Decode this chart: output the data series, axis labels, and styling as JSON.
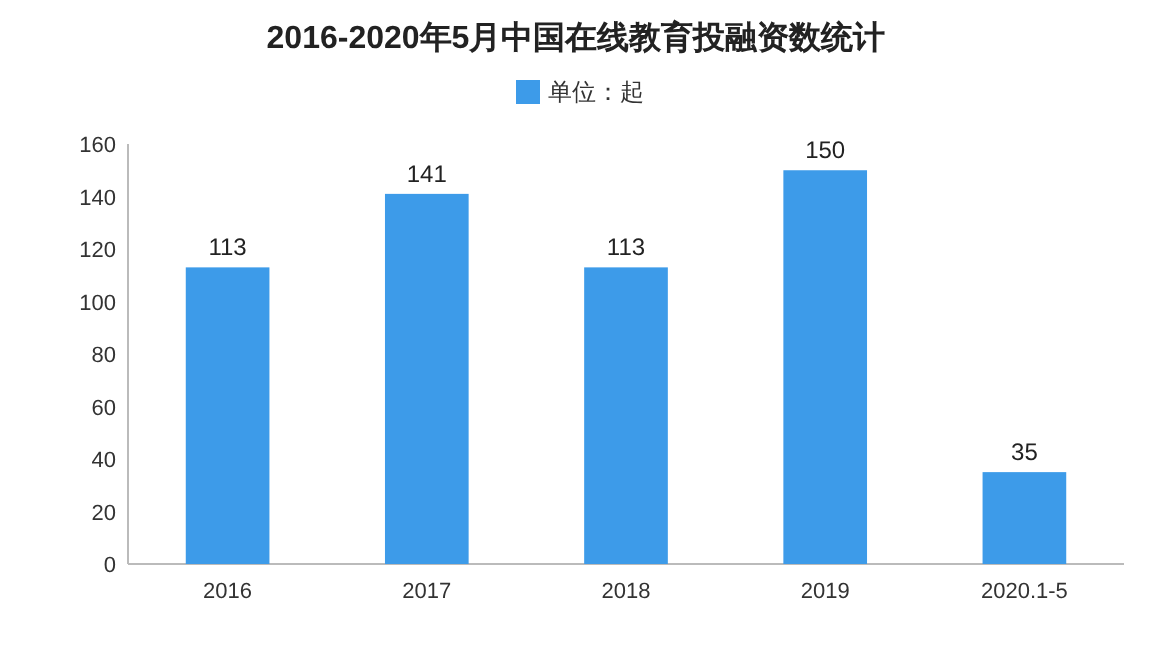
{
  "chart_data": {
    "type": "bar",
    "title": "2016-2020年5月中国在线教育投融资数统计",
    "categories": [
      "2016",
      "2017",
      "2018",
      "2019",
      "2020.1-5"
    ],
    "series": [
      {
        "name": "单位：起",
        "color": "#3d9be9",
        "values": [
          113,
          141,
          113,
          150,
          35
        ]
      }
    ],
    "ylim": [
      0,
      160
    ],
    "yticks": [
      0,
      20,
      40,
      60,
      80,
      100,
      120,
      140,
      160
    ],
    "data_labels": true,
    "legend": "top",
    "grid": false
  }
}
